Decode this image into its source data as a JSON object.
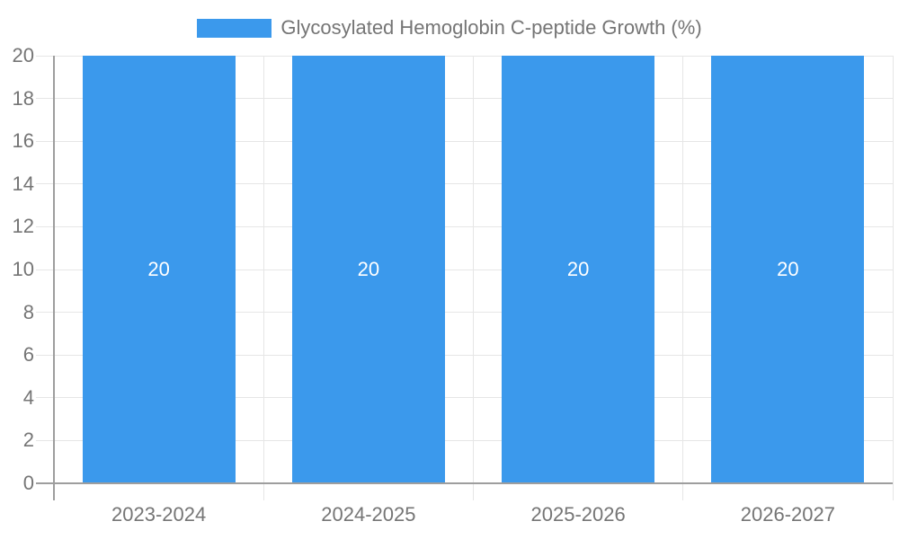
{
  "chart_data": {
    "type": "bar",
    "title": "",
    "legend": {
      "label": "Glycosylated Hemoglobin C-peptide Growth (%)",
      "position": "top-center"
    },
    "categories": [
      "2023-2024",
      "2024-2025",
      "2025-2026",
      "2026-2027"
    ],
    "series": [
      {
        "name": "Glycosylated Hemoglobin C-peptide Growth (%)",
        "values": [
          20,
          20,
          20,
          20
        ],
        "color": "#3b99ec"
      }
    ],
    "value_labels": [
      "20",
      "20",
      "20",
      "20"
    ],
    "xlabel": "",
    "ylabel": "",
    "ylim": [
      0,
      20
    ],
    "yticks": [
      0,
      2,
      4,
      6,
      8,
      10,
      12,
      14,
      16,
      18,
      20
    ],
    "grid": true,
    "colors": {
      "bar": "#3b99ec",
      "value_label_text": "#ffffff",
      "axis_text": "#757575",
      "gridline": "#e6e6e6",
      "axis_line": "#9e9e9e",
      "background": "#ffffff"
    }
  }
}
